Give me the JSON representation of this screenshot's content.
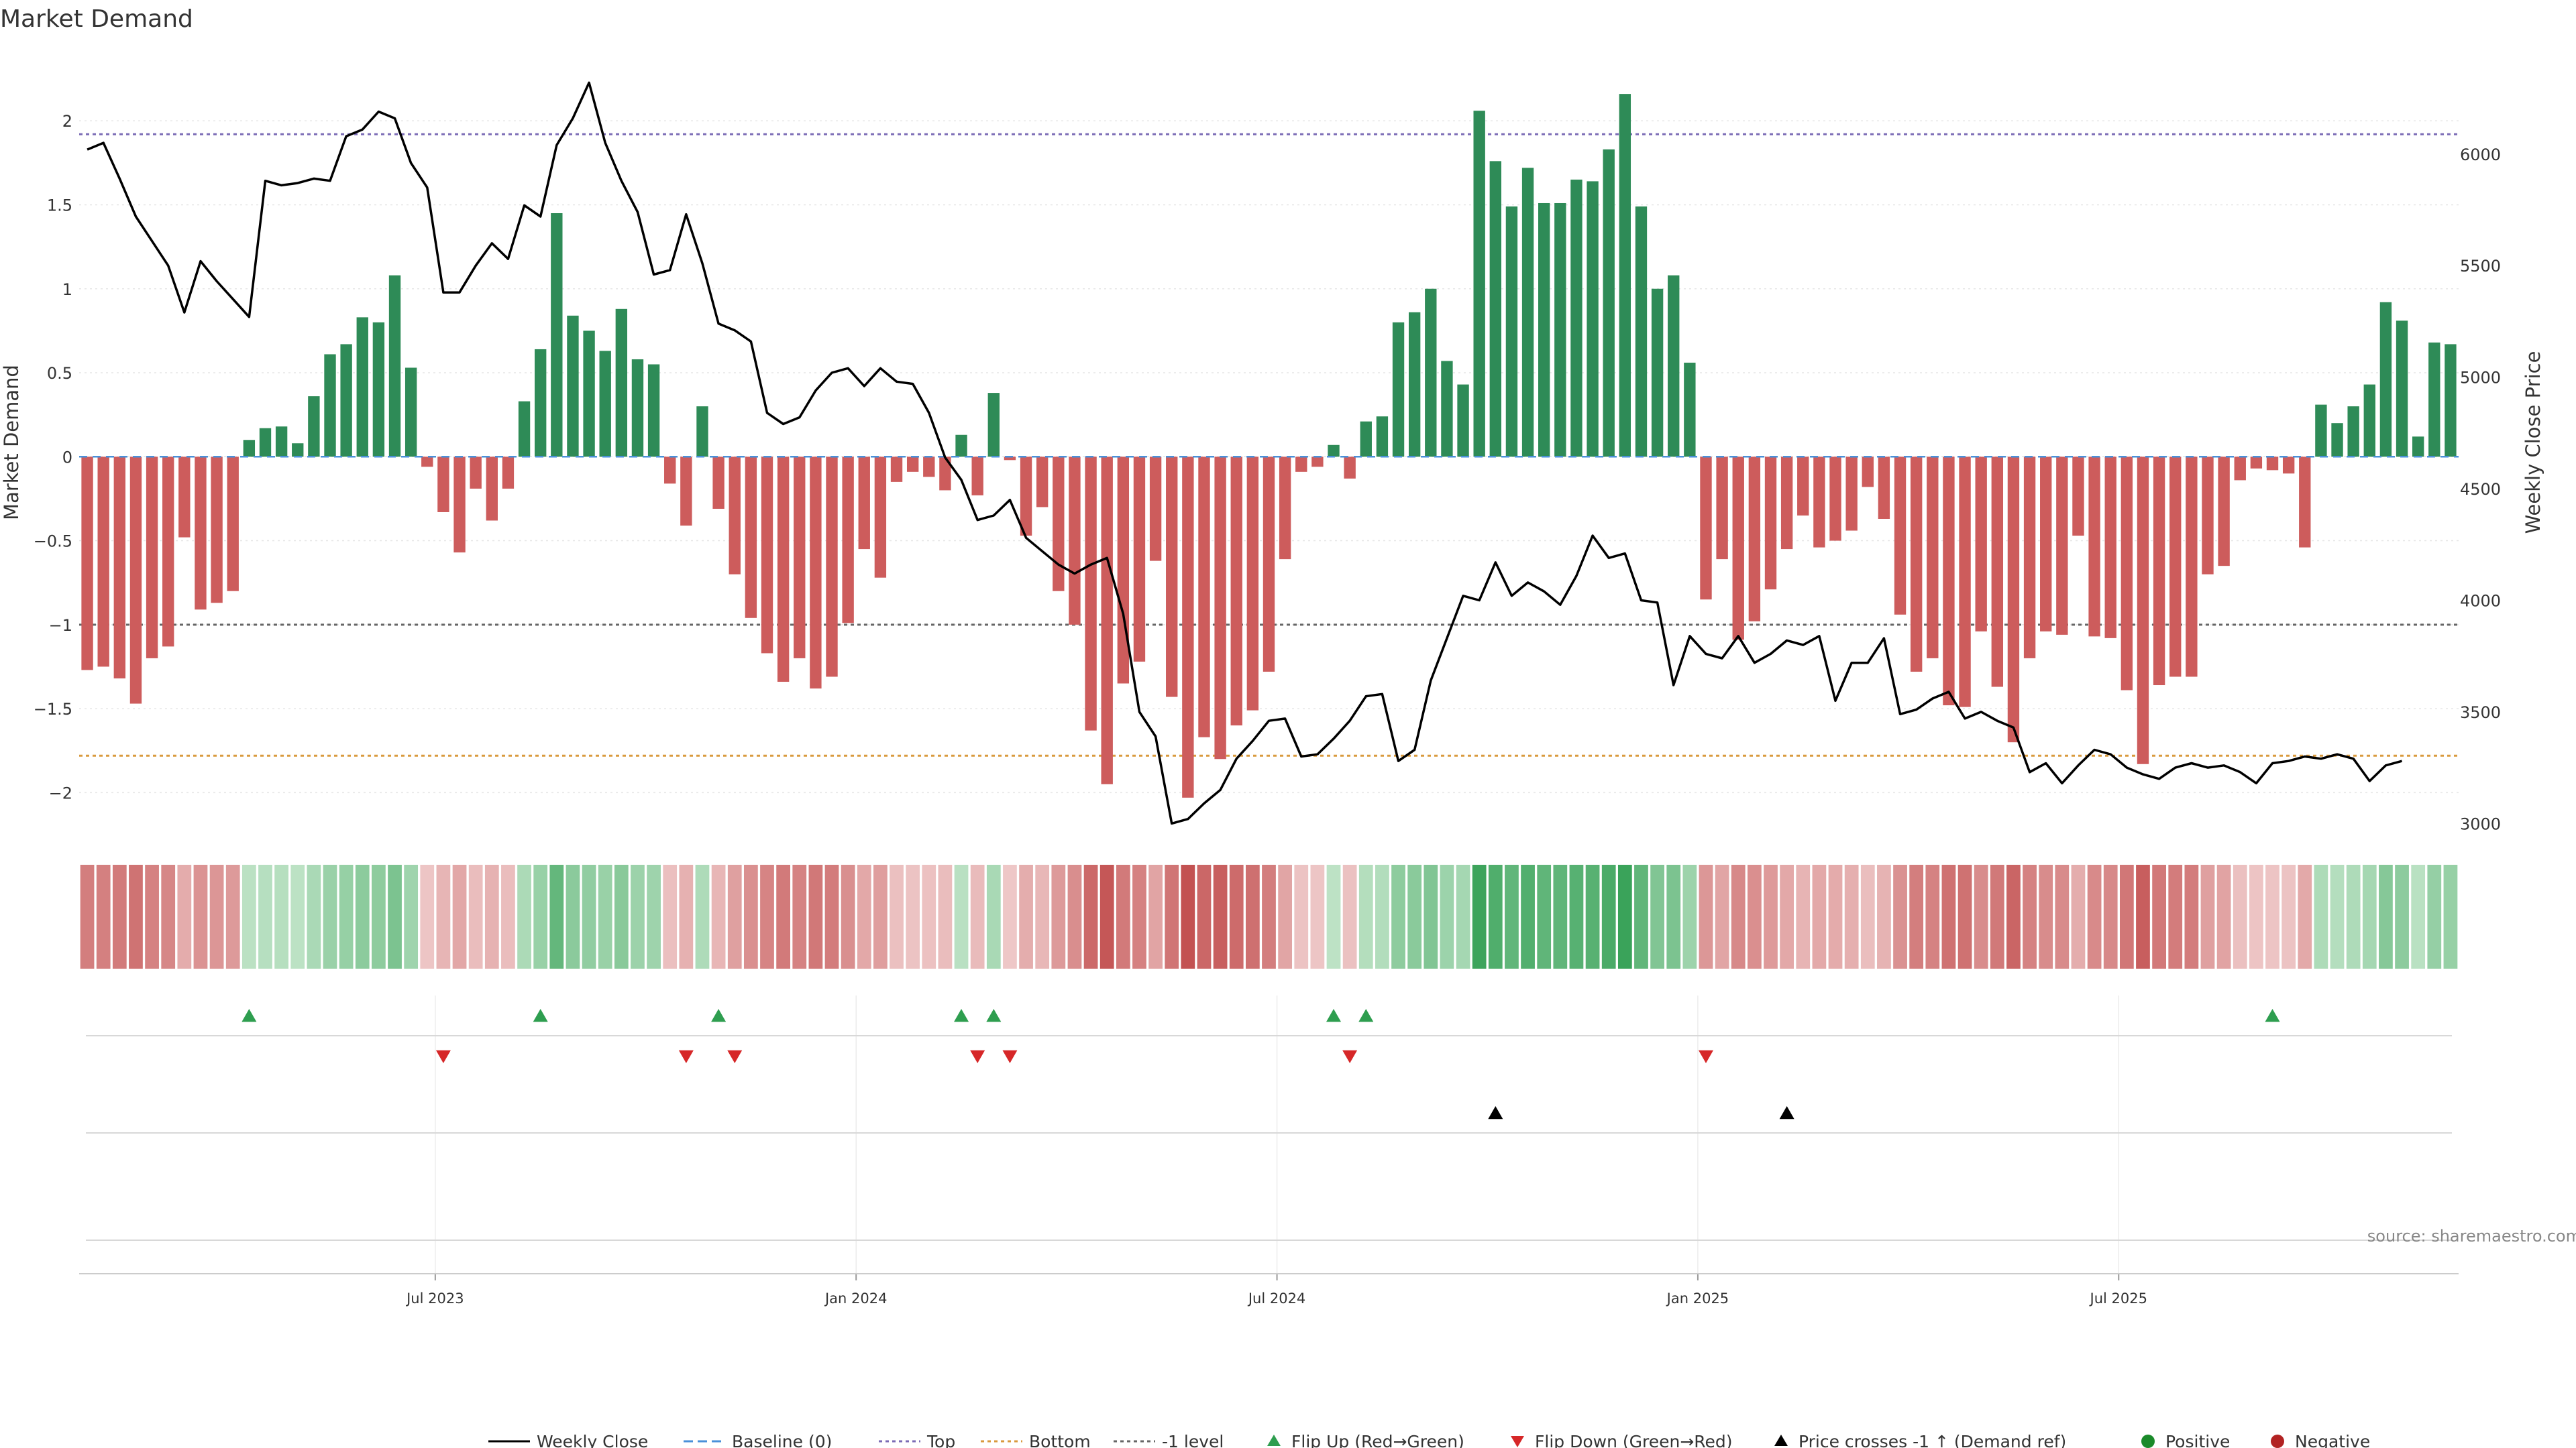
{
  "chart_data": {
    "type": "bar",
    "title": "Market Demand",
    "ylabel": "Market Demand",
    "y2label": "Weekly Close Price",
    "ylim": [
      -2.25,
      2.4
    ],
    "y2lim": [
      2950,
      6450
    ],
    "yticks": [
      "2",
      "1.5",
      "1",
      "0.5",
      "0",
      "−0.5",
      "−1",
      "−1.5",
      "−2"
    ],
    "ytick_values": [
      2,
      1.5,
      1,
      0.5,
      0,
      -0.5,
      -1,
      -1.5,
      -2
    ],
    "y2ticks": [
      "6000",
      "5500",
      "5000",
      "4500",
      "4000",
      "3500",
      "3000"
    ],
    "y2tick_values": [
      6000,
      5500,
      5000,
      4500,
      4000,
      3500,
      3000
    ],
    "xticks": [
      {
        "label": "Jul 2023",
        "week": 22
      },
      {
        "label": "Jan 2024",
        "week": 48
      },
      {
        "label": "Jul 2024",
        "week": 74
      },
      {
        "label": "Jan 2025",
        "week": 100
      },
      {
        "label": "Jul 2025",
        "week": 126
      }
    ],
    "reference_lines": {
      "top": 1.92,
      "bottom": -1.78,
      "minus_one": -1.0,
      "baseline": 0
    },
    "demand": [
      -1.27,
      -1.25,
      -1.32,
      -1.47,
      -1.2,
      -1.13,
      -0.48,
      -0.91,
      -0.87,
      -0.8,
      0.1,
      0.17,
      0.18,
      0.08,
      0.36,
      0.61,
      0.67,
      0.83,
      0.8,
      1.08,
      0.53,
      -0.06,
      -0.33,
      -0.57,
      -0.19,
      -0.38,
      -0.19,
      0.33,
      0.64,
      1.45,
      0.84,
      0.75,
      0.63,
      0.88,
      0.58,
      0.55,
      -0.16,
      -0.41,
      0.3,
      -0.31,
      -0.7,
      -0.96,
      -1.17,
      -1.34,
      -1.2,
      -1.38,
      -1.31,
      -0.99,
      -0.55,
      -0.72,
      -0.15,
      -0.09,
      -0.12,
      -0.2,
      0.13,
      -0.23,
      0.38,
      -0.02,
      -0.47,
      -0.3,
      -0.8,
      -1.0,
      -1.63,
      -1.95,
      -1.35,
      -1.22,
      -0.62,
      -1.43,
      -2.03,
      -1.67,
      -1.8,
      -1.6,
      -1.51,
      -1.28,
      -0.61,
      -0.09,
      -0.06,
      0.07,
      -0.13,
      0.21,
      0.24,
      0.8,
      0.86,
      1.0,
      0.57,
      0.43,
      2.06,
      1.76,
      1.49,
      1.72,
      1.51,
      1.51,
      1.65,
      1.64,
      1.83,
      2.16,
      1.49,
      1.0,
      1.08,
      0.56,
      -0.85,
      -0.61,
      -1.09,
      -0.98,
      -0.79,
      -0.55,
      -0.35,
      -0.54,
      -0.5,
      -0.44,
      -0.18,
      -0.37,
      -0.94,
      -1.28,
      -1.2,
      -1.48,
      -1.49,
      -1.04,
      -1.37,
      -1.7,
      -1.2,
      -1.04,
      -1.06,
      -0.47,
      -1.07,
      -1.08,
      -1.39,
      -1.83,
      -1.36,
      -1.31,
      -1.31,
      -0.7,
      -0.65,
      -0.14,
      -0.07,
      -0.08,
      -0.1,
      -0.54,
      0.31,
      0.2,
      0.3,
      0.43,
      0.92,
      0.81,
      0.12,
      0.68,
      0.67
    ],
    "price": [
      6020,
      6050,
      5890,
      5720,
      5610,
      5500,
      5290,
      5520,
      5430,
      5350,
      5270,
      5880,
      5860,
      5870,
      5890,
      5880,
      6080,
      6110,
      6190,
      6160,
      5960,
      5850,
      5380,
      5380,
      5500,
      5600,
      5530,
      5770,
      5720,
      6040,
      6160,
      6320,
      6050,
      5880,
      5740,
      5460,
      5480,
      5730,
      5510,
      5240,
      5210,
      5160,
      4840,
      4790,
      4820,
      4940,
      5020,
      5040,
      4960,
      5040,
      4980,
      4970,
      4840,
      4640,
      4540,
      4360,
      4380,
      4450,
      4280,
      4220,
      4160,
      4120,
      4160,
      4190,
      3940,
      3500,
      3390,
      3000,
      3020,
      3090,
      3150,
      3290,
      3370,
      3460,
      3470,
      3300,
      3310,
      3380,
      3460,
      3570,
      3580,
      3280,
      3330,
      3640,
      3830,
      4020,
      4000,
      4170,
      4020,
      4080,
      4040,
      3980,
      4110,
      4290,
      4190,
      4210,
      4000,
      3990,
      3620,
      3840,
      3760,
      3740,
      3840,
      3720,
      3760,
      3820,
      3800,
      3840,
      3550,
      3720,
      3720,
      3830,
      3490,
      3510,
      3560,
      3590,
      3470,
      3500,
      3460,
      3430,
      3230,
      3270,
      3180,
      3260,
      3330,
      3310,
      3250,
      3220,
      3200,
      3250,
      3270,
      3250,
      3260,
      3230,
      3180,
      3270,
      3280,
      3300,
      3290,
      3310,
      3290,
      3190,
      3260,
      3280
    ],
    "flip_up_weeks": [
      10,
      28,
      39,
      54,
      56,
      77,
      79,
      135
    ],
    "flip_down_weeks": [
      22,
      37,
      40,
      55,
      57,
      78,
      100
    ],
    "cross_up_weeks": [
      87,
      105
    ],
    "legend": [
      "Weekly Close",
      "Baseline (0)",
      "Top",
      "Bottom",
      "-1 level",
      "Flip Up (Red→Green)",
      "Flip Down (Green→Red)",
      "Price crosses -1 ↑ (Demand ref)",
      "Positive",
      "Negative"
    ],
    "colors": {
      "positive": "#2e8b57",
      "negative": "#cd5c5c",
      "price": "#000000",
      "top": "#7b6bb5",
      "bottom": "#d99a3e",
      "minus_one": "#666666",
      "baseline": "#4a90d9",
      "flip_up": "#2e9e4f",
      "flip_down": "#d62728",
      "cross": "#000000",
      "dot_positive": "#1a8a2a",
      "dot_negative": "#b22222"
    },
    "source": "source: sharemaestro.com"
  }
}
